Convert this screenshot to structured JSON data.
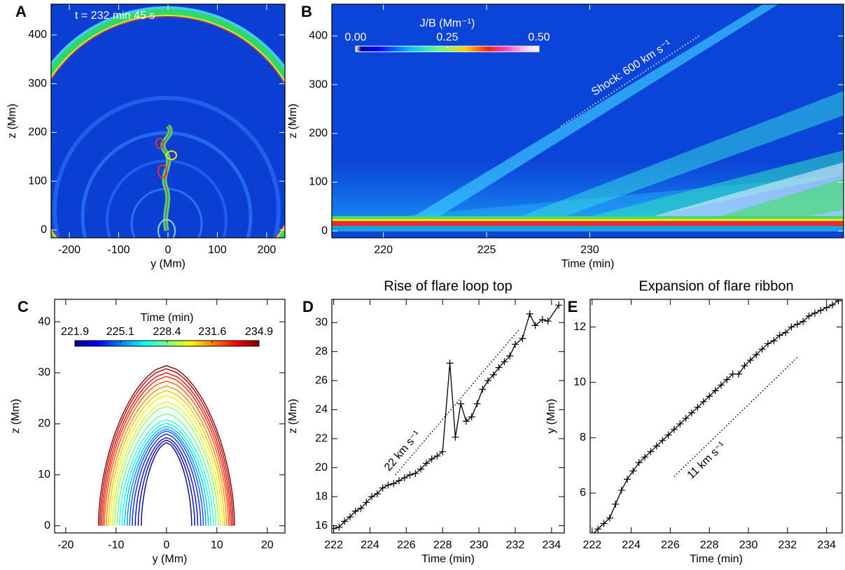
{
  "chart_data": [
    {
      "panel_label": "A",
      "type": "image",
      "annotation": "t = 232 min 45 s",
      "xlabel": "y (Mm)",
      "ylabel": "z (Mm)",
      "xlim": [
        -237,
        237
      ],
      "ylim": [
        -16,
        463
      ],
      "xticks": [
        -200,
        -100,
        0,
        100,
        200
      ],
      "yticks": [
        0,
        100,
        200,
        300,
        400
      ]
    },
    {
      "panel_label": "B",
      "type": "image",
      "xlabel": "Time (min)",
      "ylabel": "z (Mm)",
      "xlim": [
        217.5,
        242.3
      ],
      "ylim": [
        -14,
        465
      ],
      "xticks": [
        220,
        225,
        230
      ],
      "yticks": [
        0,
        100,
        200,
        300,
        400
      ],
      "colorbar": {
        "label": "J/B (Mm⁻¹)",
        "clim": [
          0,
          0.5
        ],
        "ticks": [
          {
            "value": 0,
            "label": "0.00"
          },
          {
            "value": 0.25,
            "label": "0.25"
          },
          {
            "value": 0.5,
            "label": "0.50"
          }
        ]
      },
      "fit": {
        "label": "Shock: 600 km s⁻¹",
        "x": [
          228.6,
          235.3
        ],
        "y": [
          215,
          400
        ]
      }
    },
    {
      "panel_label": "C",
      "type": "contour",
      "xlabel": "y (Mm)",
      "ylabel": "z (Mm)",
      "xlim": [
        -22.2,
        23.5
      ],
      "ylim": [
        -1.4,
        44.4
      ],
      "xticks": [
        -20,
        -10,
        0,
        10,
        20
      ],
      "yticks": [
        0,
        10,
        20,
        30,
        40
      ],
      "colorbar": {
        "label": "Time (min)",
        "clim": [
          221.9,
          234.9
        ],
        "ticks": [
          221.9,
          225.1,
          228.4,
          231.6,
          234.9
        ]
      },
      "loops": {
        "time": [
          221.9,
          222.6,
          223.3,
          224.0,
          224.6,
          225.3,
          226.0,
          226.7,
          227.4,
          228.1,
          228.7,
          229.4,
          230.1,
          230.8,
          231.5,
          232.2,
          232.8,
          233.5,
          234.2,
          234.9
        ],
        "top": [
          16.3,
          16.8,
          17.3,
          18.0,
          18.6,
          19.0,
          19.5,
          20.1,
          20.8,
          22.0,
          23.4,
          24.3,
          25.5,
          26.5,
          27.4,
          28.4,
          29.3,
          30.0,
          30.8,
          31.4
        ],
        "half_width": [
          5.0,
          5.6,
          6.2,
          6.8,
          7.3,
          7.8,
          8.3,
          8.8,
          9.3,
          9.8,
          10.3,
          10.7,
          11.1,
          11.5,
          11.9,
          12.3,
          12.6,
          12.9,
          13.2,
          13.5
        ]
      }
    },
    {
      "panel_label": "D",
      "type": "line",
      "title": "Rise of flare loop top",
      "xlabel": "Time (min)",
      "ylabel": "z (Mm)",
      "xlim": [
        221.9,
        234.7
      ],
      "ylim": [
        15.5,
        31.6
      ],
      "xticks": [
        222,
        224,
        226,
        228,
        230,
        232,
        234
      ],
      "yticks": [
        16,
        18,
        20,
        22,
        24,
        26,
        28,
        30
      ],
      "color": "#000000",
      "x": [
        222.0,
        222.3,
        222.6,
        222.9,
        223.2,
        223.5,
        223.8,
        224.1,
        224.4,
        224.7,
        225.0,
        225.3,
        225.6,
        225.9,
        226.2,
        226.5,
        226.8,
        227.1,
        227.4,
        227.7,
        228.0,
        228.4,
        228.7,
        229.0,
        229.3,
        229.6,
        229.9,
        230.2,
        230.5,
        230.8,
        231.1,
        231.4,
        231.7,
        232.0,
        232.4,
        232.8,
        233.1,
        233.5,
        233.8,
        234.4
      ],
      "values": [
        15.8,
        15.9,
        16.3,
        16.6,
        17.0,
        17.2,
        17.6,
        18.0,
        18.2,
        18.6,
        18.8,
        18.9,
        19.1,
        19.3,
        19.5,
        19.6,
        19.9,
        20.3,
        20.6,
        20.8,
        21.1,
        27.2,
        22.1,
        24.4,
        23.2,
        23.5,
        24.4,
        25.4,
        26.0,
        26.4,
        26.9,
        27.3,
        27.7,
        28.5,
        28.9,
        30.6,
        29.8,
        30.2,
        30.1,
        31.2
      ],
      "fit": {
        "label": "22 km s⁻¹",
        "x": [
          225.4,
          232.2
        ],
        "y": [
          19.5,
          29.5
        ]
      }
    },
    {
      "panel_label": "E",
      "type": "line",
      "title": "Expansion of flare ribbon",
      "xlabel": "Time (min)",
      "ylabel": "y (Mm)",
      "xlim": [
        221.9,
        234.8
      ],
      "ylim": [
        4.56,
        13.0
      ],
      "xticks": [
        222,
        224,
        226,
        228,
        230,
        232,
        234
      ],
      "yticks": [
        6,
        8,
        10,
        12
      ],
      "color": "#000000",
      "x": [
        222.0,
        222.3,
        222.6,
        222.9,
        223.2,
        223.5,
        223.8,
        224.1,
        224.4,
        224.7,
        225.0,
        225.3,
        225.6,
        225.9,
        226.2,
        226.5,
        226.8,
        227.1,
        227.4,
        227.7,
        228.0,
        228.3,
        228.6,
        228.9,
        229.2,
        229.5,
        229.8,
        230.1,
        230.4,
        230.7,
        231.0,
        231.3,
        231.6,
        231.9,
        232.2,
        232.5,
        232.8,
        233.1,
        233.4,
        233.7,
        234.0,
        234.3,
        234.6
      ],
      "values": [
        4.5,
        4.7,
        4.9,
        5.1,
        5.6,
        6.1,
        6.5,
        6.8,
        7.1,
        7.3,
        7.5,
        7.7,
        7.9,
        8.1,
        8.3,
        8.5,
        8.7,
        8.9,
        9.1,
        9.3,
        9.5,
        9.7,
        9.9,
        10.1,
        10.3,
        10.3,
        10.6,
        10.8,
        11.0,
        11.2,
        11.4,
        11.5,
        11.7,
        11.8,
        12.0,
        12.1,
        12.2,
        12.4,
        12.5,
        12.6,
        12.7,
        12.8,
        12.95
      ],
      "fit": {
        "label": "11 km s⁻¹",
        "x": [
          226.2,
          232.5
        ],
        "y": [
          6.6,
          10.9
        ]
      }
    }
  ]
}
